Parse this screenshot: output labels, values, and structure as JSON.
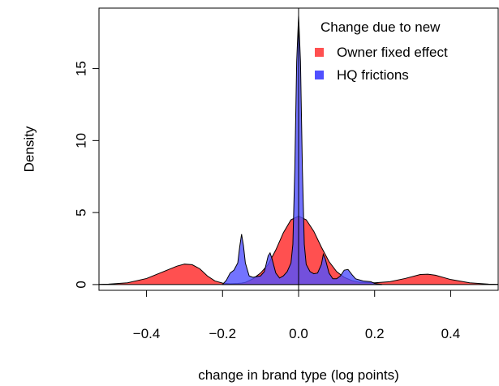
{
  "chart_data": {
    "type": "area",
    "title": "",
    "xlabel": "change in brand type (log points)",
    "ylabel": "Density",
    "xlim": [
      -0.525,
      0.525
    ],
    "ylim": [
      -0.4,
      19.2
    ],
    "x_ticks": [
      {
        "value": -0.4,
        "label": "−0.4"
      },
      {
        "value": -0.2,
        "label": "−0.2"
      },
      {
        "value": 0.0,
        "label": "0.0"
      },
      {
        "value": 0.2,
        "label": "0.2"
      },
      {
        "value": 0.4,
        "label": "0.4"
      }
    ],
    "y_ticks": [
      {
        "value": 0,
        "label": "0"
      },
      {
        "value": 5,
        "label": "5"
      },
      {
        "value": 10,
        "label": "10"
      },
      {
        "value": 15,
        "label": "15"
      }
    ],
    "reference_line_x": 0,
    "legend": {
      "title": "Change due to new",
      "placement": "top-right",
      "entries": [
        {
          "label": "Owner fixed effect",
          "color": "#ff5050"
        },
        {
          "label": "HQ frictions",
          "color": "#5050ff"
        }
      ]
    },
    "series": [
      {
        "legend_label": "Owner fixed effect",
        "color": "#ff5050",
        "x": [
          -0.55,
          -0.5,
          -0.45,
          -0.4,
          -0.36,
          -0.32,
          -0.3,
          -0.28,
          -0.26,
          -0.24,
          -0.22,
          -0.2,
          -0.18,
          -0.16,
          -0.15,
          -0.14,
          -0.12,
          -0.1,
          -0.08,
          -0.06,
          -0.04,
          -0.02,
          0.0,
          0.02,
          0.04,
          0.06,
          0.08,
          0.1,
          0.12,
          0.14,
          0.16,
          0.2,
          0.24,
          0.28,
          0.32,
          0.34,
          0.36,
          0.4,
          0.45,
          0.5,
          0.55
        ],
        "y": [
          0,
          0.03,
          0.12,
          0.42,
          0.85,
          1.28,
          1.42,
          1.38,
          1.1,
          0.6,
          0.25,
          0.1,
          0.06,
          0.08,
          0.1,
          0.15,
          0.4,
          0.8,
          1.4,
          2.4,
          3.6,
          4.5,
          4.75,
          4.5,
          3.7,
          2.6,
          1.6,
          0.9,
          0.5,
          0.28,
          0.16,
          0.12,
          0.2,
          0.42,
          0.7,
          0.72,
          0.65,
          0.35,
          0.12,
          0.03,
          0
        ]
      },
      {
        "legend_label": "HQ frictions",
        "color": "#5050ff",
        "x": [
          -0.2,
          -0.19,
          -0.18,
          -0.17,
          -0.16,
          -0.155,
          -0.15,
          -0.145,
          -0.14,
          -0.13,
          -0.12,
          -0.11,
          -0.1,
          -0.09,
          -0.08,
          -0.075,
          -0.07,
          -0.06,
          -0.05,
          -0.04,
          -0.03,
          -0.02,
          -0.015,
          -0.01,
          -0.005,
          0.0,
          0.005,
          0.01,
          0.015,
          0.02,
          0.03,
          0.04,
          0.05,
          0.06,
          0.065,
          0.07,
          0.08,
          0.09,
          0.1,
          0.11,
          0.12,
          0.13,
          0.14,
          0.15,
          0.17,
          0.19,
          0.2,
          0.22
        ],
        "y": [
          0,
          0.3,
          0.8,
          1.0,
          1.5,
          2.6,
          3.5,
          2.7,
          1.5,
          0.6,
          0.5,
          0.55,
          0.6,
          0.9,
          2.0,
          2.2,
          1.8,
          0.8,
          0.45,
          0.6,
          0.9,
          1.5,
          2.8,
          8.0,
          15.5,
          18.7,
          15.5,
          8.0,
          2.8,
          1.4,
          0.9,
          0.75,
          0.8,
          1.4,
          2.1,
          1.8,
          0.8,
          0.4,
          0.4,
          0.6,
          1.0,
          1.05,
          0.7,
          0.4,
          0.25,
          0.2,
          0.08,
          0
        ]
      }
    ]
  }
}
